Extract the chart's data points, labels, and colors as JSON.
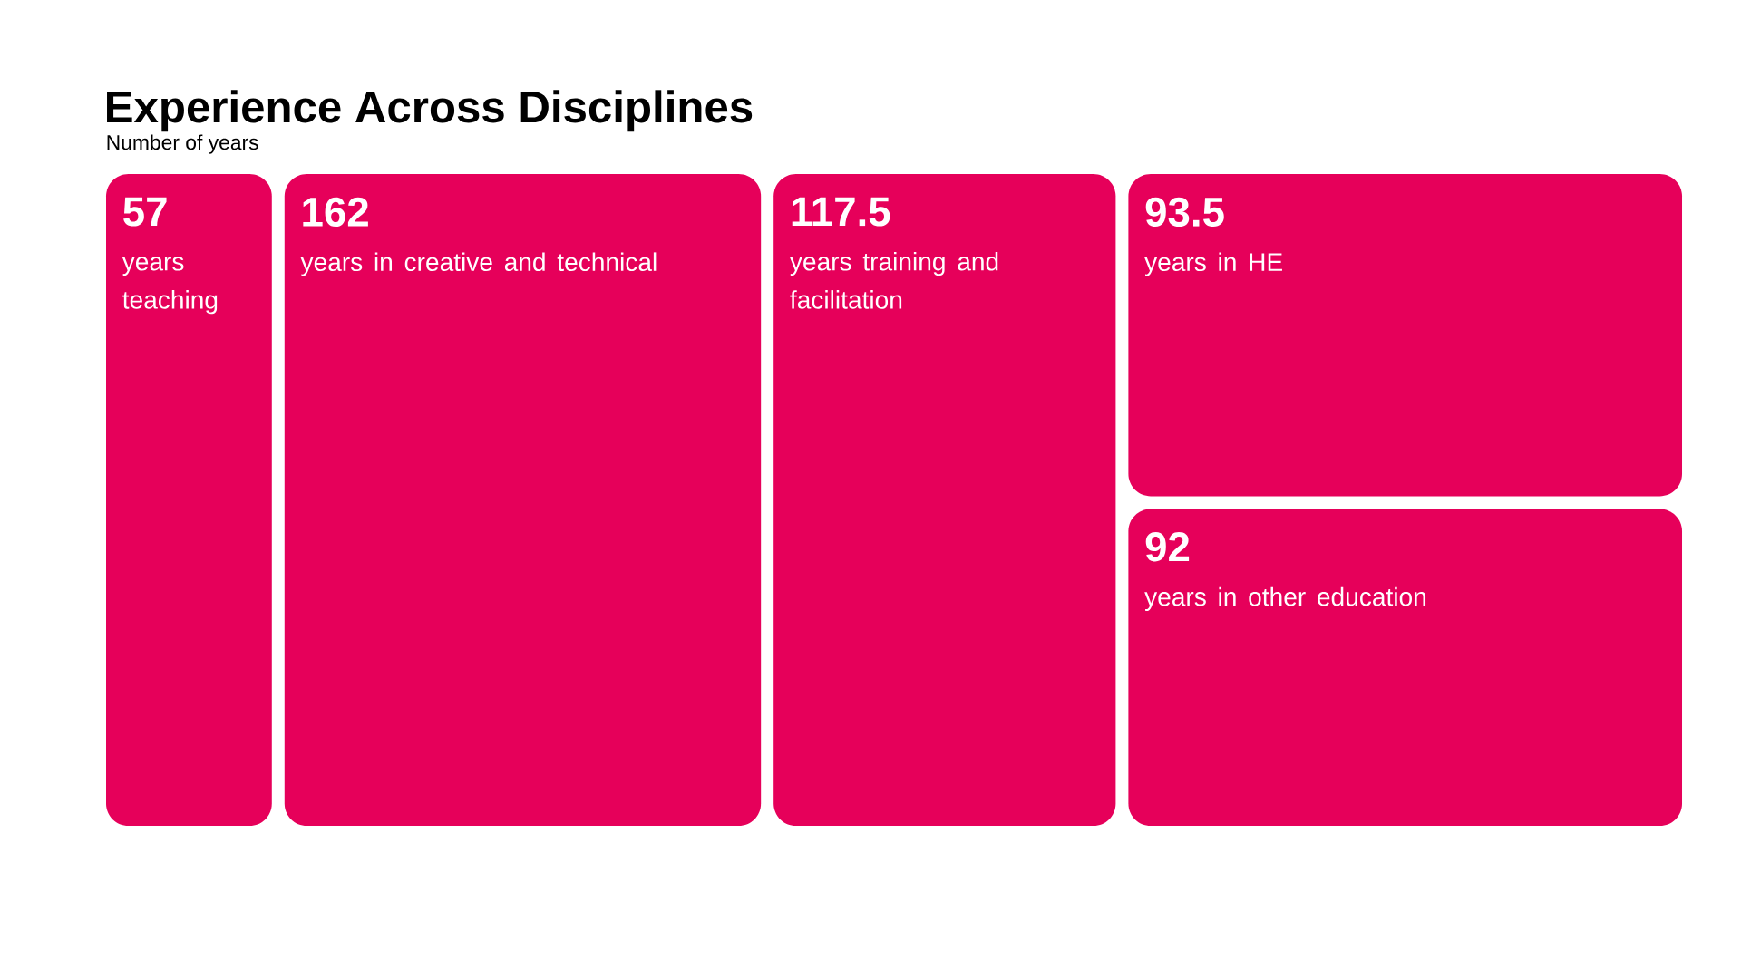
{
  "chart_data": {
    "type": "other",
    "title": "Experience Across Disciplines",
    "subtitle": "Number of years",
    "categories": [
      "years teaching",
      "years in creative and technical",
      "years training and facilitation",
      "years in HE",
      "years in other education"
    ],
    "values": [
      57,
      162,
      117.5,
      93.5,
      92
    ],
    "color": "#e6005a",
    "data_labels": true
  }
}
